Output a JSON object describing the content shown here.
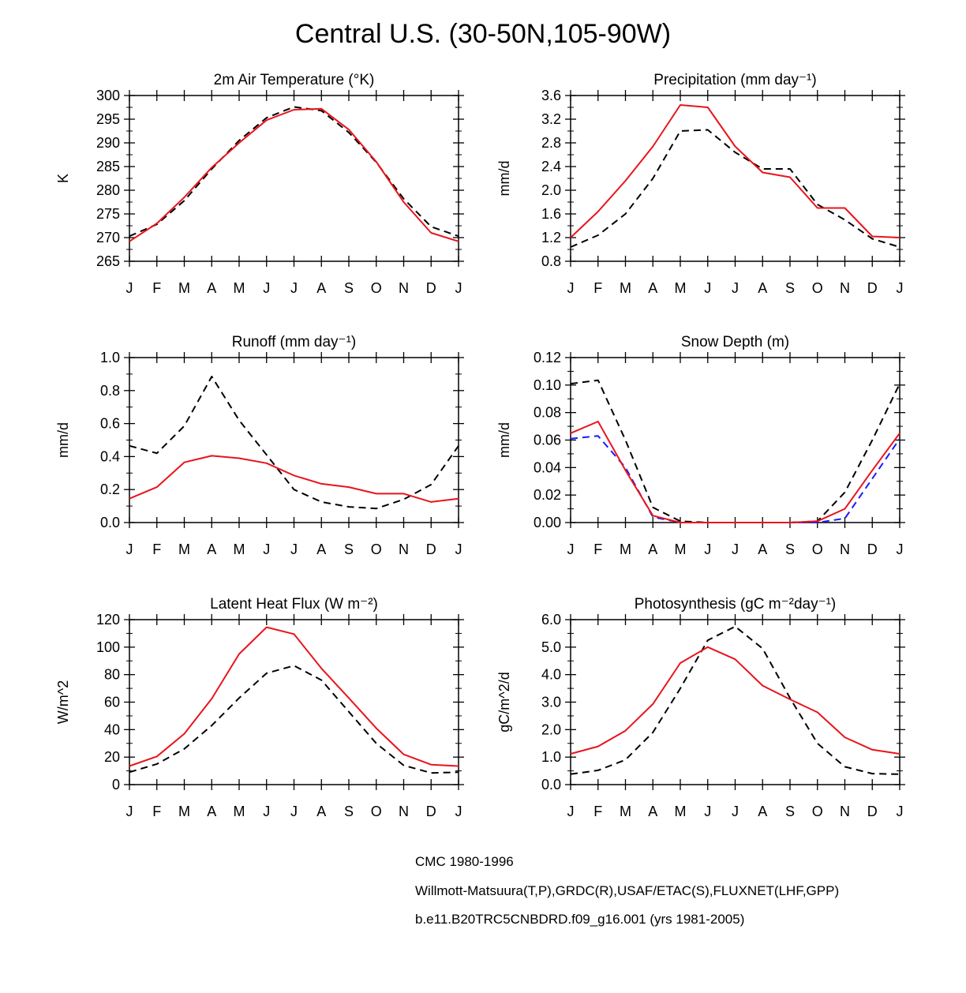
{
  "figure": {
    "title": "Central U.S. (30-50N,105-90W)",
    "months": [
      "J",
      "F",
      "M",
      "A",
      "M",
      "J",
      "J",
      "A",
      "S",
      "O",
      "N",
      "D",
      "J"
    ]
  },
  "colors": {
    "cmc": "#000000",
    "obs": "#1a1aff",
    "model": "#e8141c"
  },
  "chart_data": [
    {
      "id": "tsa",
      "type": "line",
      "title": "2m Air Temperature (°K)",
      "ylabel": "K",
      "ylim": [
        265,
        300
      ],
      "yticks": [
        265,
        270,
        275,
        280,
        285,
        290,
        295,
        300
      ],
      "ytick_labels": [
        "265",
        "270",
        "275",
        "280",
        "285",
        "290",
        "295",
        "300"
      ],
      "categories": [
        "J",
        "F",
        "M",
        "A",
        "M",
        "J",
        "J",
        "A",
        "S",
        "O",
        "N",
        "D",
        "J"
      ],
      "series": [
        {
          "name": "CMC 1980-1996",
          "style": "cmc",
          "values": [
            270.3,
            272.8,
            277.8,
            284.5,
            290.5,
            295.3,
            297.6,
            296.8,
            292.2,
            285.9,
            278.2,
            272.3,
            270.3
          ]
        },
        {
          "name": "b.e11.B20TRC5CNBDRD.f09_g16.001 (yrs 1981-2005)",
          "style": "model",
          "values": [
            269.2,
            273.0,
            278.5,
            284.8,
            290.0,
            294.8,
            297.0,
            297.2,
            292.8,
            286.0,
            277.5,
            271.0,
            269.2
          ]
        }
      ]
    },
    {
      "id": "precip",
      "type": "line",
      "title": "Precipitation (mm day⁻¹)",
      "ylabel": "mm/d",
      "ylim": [
        0.8,
        3.6
      ],
      "yticks": [
        0.8,
        1.2,
        1.6,
        2.0,
        2.4,
        2.8,
        3.2,
        3.6
      ],
      "ytick_labels": [
        "0.8",
        "1.2",
        "1.6",
        "2.0",
        "2.4",
        "2.8",
        "3.2",
        "3.6"
      ],
      "categories": [
        "J",
        "F",
        "M",
        "A",
        "M",
        "J",
        "J",
        "A",
        "S",
        "O",
        "N",
        "D",
        "J"
      ],
      "series": [
        {
          "name": "CMC 1980-1996",
          "style": "cmc",
          "values": [
            1.04,
            1.24,
            1.6,
            2.2,
            3.0,
            3.02,
            2.64,
            2.36,
            2.36,
            1.76,
            1.5,
            1.18,
            1.04
          ]
        },
        {
          "name": "b.e11.B20TRC5CNBDRD.f09_g16.001 (yrs 1981-2005)",
          "style": "model",
          "values": [
            1.2,
            1.64,
            2.16,
            2.74,
            3.44,
            3.4,
            2.74,
            2.3,
            2.22,
            1.7,
            1.7,
            1.22,
            1.2
          ]
        }
      ]
    },
    {
      "id": "runoff",
      "type": "line",
      "title": "Runoff (mm day⁻¹)",
      "ylabel": "mm/d",
      "ylim": [
        0.0,
        1.0
      ],
      "yticks": [
        0.0,
        0.2,
        0.4,
        0.6,
        0.8,
        1.0
      ],
      "ytick_labels": [
        "0.0",
        "0.2",
        "0.4",
        "0.6",
        "0.8",
        "1.0"
      ],
      "categories": [
        "J",
        "F",
        "M",
        "A",
        "M",
        "J",
        "J",
        "A",
        "S",
        "O",
        "N",
        "D",
        "J"
      ],
      "series": [
        {
          "name": "CMC 1980-1996",
          "style": "cmc",
          "values": [
            0.465,
            0.42,
            0.585,
            0.885,
            0.62,
            0.41,
            0.2,
            0.125,
            0.095,
            0.085,
            0.14,
            0.23,
            0.465
          ]
        },
        {
          "name": "b.e11.B20TRC5CNBDRD.f09_g16.001 (yrs 1981-2005)",
          "style": "model",
          "values": [
            0.145,
            0.215,
            0.365,
            0.405,
            0.39,
            0.36,
            0.285,
            0.235,
            0.215,
            0.175,
            0.175,
            0.125,
            0.145
          ]
        }
      ]
    },
    {
      "id": "snowdp",
      "type": "line",
      "title": "Snow Depth (m)",
      "ylabel": "mm/d",
      "ylim": [
        0.0,
        0.12
      ],
      "yticks": [
        0.0,
        0.02,
        0.04,
        0.06,
        0.08,
        0.1,
        0.12
      ],
      "ytick_labels": [
        "0.00",
        "0.02",
        "0.04",
        "0.06",
        "0.08",
        "0.10",
        "0.12"
      ],
      "categories": [
        "J",
        "F",
        "M",
        "A",
        "M",
        "J",
        "J",
        "A",
        "S",
        "O",
        "N",
        "D",
        "J"
      ],
      "series": [
        {
          "name": "CMC 1980-1996",
          "style": "cmc",
          "values": [
            0.101,
            0.1035,
            0.06,
            0.011,
            0.001,
            0,
            0,
            0,
            0,
            0.001,
            0.022,
            0.06,
            0.101
          ]
        },
        {
          "name": "Willmott-Matsuura(T,P),GRDC(R),USAF/ETAC(S),FLUXNET(LHF,GPP)",
          "style": "obs",
          "values": [
            0.061,
            0.063,
            0.04,
            0.004,
            0,
            0,
            0,
            0,
            0,
            0,
            0.003,
            0.032,
            0.061
          ]
        },
        {
          "name": "b.e11.B20TRC5CNBDRD.f09_g16.001 (yrs 1981-2005)",
          "style": "model",
          "values": [
            0.065,
            0.0735,
            0.038,
            0.005,
            0,
            0,
            0,
            0,
            0,
            0.001,
            0.01,
            0.038,
            0.065
          ]
        }
      ]
    },
    {
      "id": "lhf",
      "type": "line",
      "title": "Latent Heat Flux (W m⁻²)",
      "ylabel": "W/m^2",
      "ylim": [
        0,
        120
      ],
      "yticks": [
        0,
        20,
        40,
        60,
        80,
        100,
        120
      ],
      "ytick_labels": [
        "0",
        "20",
        "40",
        "60",
        "80",
        "100",
        "120"
      ],
      "categories": [
        "J",
        "F",
        "M",
        "A",
        "M",
        "J",
        "J",
        "A",
        "S",
        "O",
        "N",
        "D",
        "J"
      ],
      "series": [
        {
          "name": "CMC 1980-1996",
          "style": "cmc",
          "values": [
            9,
            15,
            26,
            43,
            63,
            81,
            86.5,
            76,
            53,
            30,
            14,
            8.5,
            9
          ]
        },
        {
          "name": "b.e11.B20TRC5CNBDRD.f09_g16.001 (yrs 1981-2005)",
          "style": "model",
          "values": [
            13.5,
            20.5,
            37,
            62.5,
            95,
            114.5,
            109.5,
            84.5,
            63,
            41,
            22,
            14.5,
            13.5
          ]
        }
      ]
    },
    {
      "id": "gpp",
      "type": "line",
      "title": "Photosynthesis (gC m⁻²day⁻¹)",
      "ylabel": "gC/m^2/d",
      "ylim": [
        0.0,
        6.0
      ],
      "yticks": [
        0.0,
        1.0,
        2.0,
        3.0,
        4.0,
        5.0,
        6.0
      ],
      "ytick_labels": [
        "0.0",
        "1.0",
        "2.0",
        "3.0",
        "4.0",
        "5.0",
        "6.0"
      ],
      "categories": [
        "J",
        "F",
        "M",
        "A",
        "M",
        "J",
        "J",
        "A",
        "S",
        "O",
        "N",
        "D",
        "J"
      ],
      "series": [
        {
          "name": "CMC 1980-1996",
          "style": "cmc",
          "values": [
            0.38,
            0.52,
            0.9,
            1.9,
            3.5,
            5.25,
            5.75,
            4.95,
            3.15,
            1.5,
            0.65,
            0.4,
            0.38
          ]
        },
        {
          "name": "b.e11.B20TRC5CNBDRD.f09_g16.001 (yrs 1981-2005)",
          "style": "model",
          "values": [
            1.12,
            1.39,
            1.96,
            2.93,
            4.42,
            5.0,
            4.56,
            3.6,
            3.1,
            2.63,
            1.72,
            1.27,
            1.12
          ]
        }
      ]
    }
  ],
  "legend": [
    {
      "label": "CMC 1980-1996",
      "style": "cmc"
    },
    {
      "label": "Willmott-Matsuura(T,P),GRDC(R),USAF/ETAC(S),FLUXNET(LHF,GPP)",
      "style": "obs"
    },
    {
      "label": "b.e11.B20TRC5CNBDRD.f09_g16.001 (yrs 1981-2005)",
      "style": "model"
    }
  ]
}
